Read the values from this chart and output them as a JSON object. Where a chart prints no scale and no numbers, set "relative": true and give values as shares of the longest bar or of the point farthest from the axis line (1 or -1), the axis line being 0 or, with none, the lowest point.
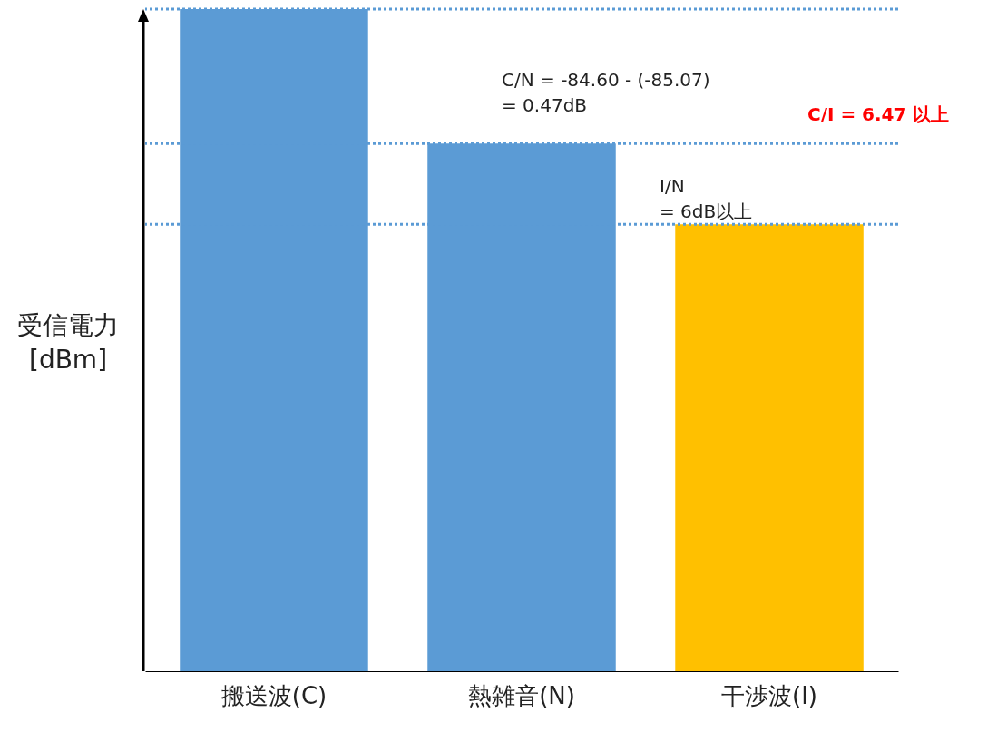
{
  "chart_data": {
    "type": "bar",
    "relative": true,
    "ylabel": "受信電力\n[dBm]",
    "categories": [
      "搬送波(C)",
      "熱雑音(N)",
      "干渉波(I)"
    ],
    "values": [
      1,
      0.797,
      0.675
    ],
    "colors": [
      "#5b9bd5",
      "#5b9bd5",
      "#ffc000"
    ],
    "ref_lines": [
      {
        "axis": "y",
        "value": 1,
        "color": "#5b9bd5",
        "line_style": "dotted"
      },
      {
        "axis": "y",
        "value": 0.797,
        "color": "#5b9bd5",
        "line_style": "dotted"
      },
      {
        "axis": "y",
        "value": 0.675,
        "color": "#5b9bd5",
        "line_style": "dotted"
      }
    ],
    "annotations": [
      "C/N = -84.60 - (-85.07)\n       = 0.47dB",
      "I/N\n= 6dB以上",
      "C/I = 6.47 以上"
    ]
  }
}
